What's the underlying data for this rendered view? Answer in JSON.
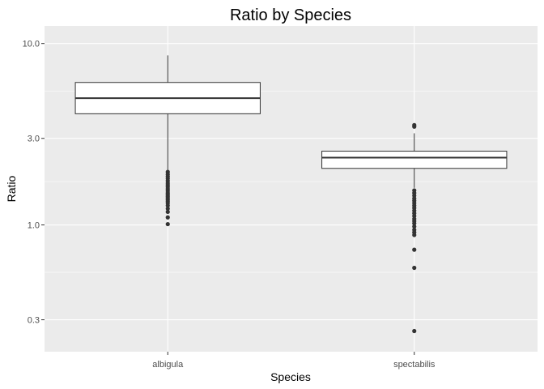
{
  "chart_data": {
    "type": "boxplot",
    "title": "Ratio by Species",
    "xlabel": "Species",
    "ylabel": "Ratio",
    "y_scale": "log10",
    "ylim": [
      0.2,
      12.5
    ],
    "y_ticks": [
      0.3,
      1.0,
      3.0,
      10.0
    ],
    "y_tick_labels": [
      "0.3",
      "1.0",
      "3.0",
      "10.0"
    ],
    "categories": [
      "albigula",
      "spectabilis"
    ],
    "grid": true,
    "colors": {
      "panel_bg": "#ebebeb",
      "grid": "#ffffff",
      "box_fill": "#ffffff",
      "box_line": "#333333",
      "outlier": "#333333"
    },
    "boxes": [
      {
        "category": "albigula",
        "whisker_low": 2.0,
        "q1": 4.1,
        "median": 5.0,
        "q3": 6.1,
        "whisker_high": 8.6,
        "outliers": [
          1.96,
          1.9,
          1.85,
          1.8,
          1.75,
          1.7,
          1.66,
          1.62,
          1.58,
          1.54,
          1.5,
          1.47,
          1.44,
          1.41,
          1.38,
          1.35,
          1.32,
          1.28,
          1.23,
          1.18,
          1.1,
          1.01
        ]
      },
      {
        "category": "spectabilis",
        "whisker_low": 1.6,
        "q1": 2.05,
        "median": 2.35,
        "q3": 2.55,
        "whisker_high": 3.2,
        "outliers": [
          3.55,
          3.48,
          1.55,
          1.5,
          1.45,
          1.4,
          1.36,
          1.32,
          1.28,
          1.24,
          1.2,
          1.16,
          1.12,
          1.08,
          1.05,
          1.02,
          0.98,
          0.94,
          0.91,
          0.88,
          0.73,
          0.58,
          0.26
        ]
      }
    ]
  }
}
